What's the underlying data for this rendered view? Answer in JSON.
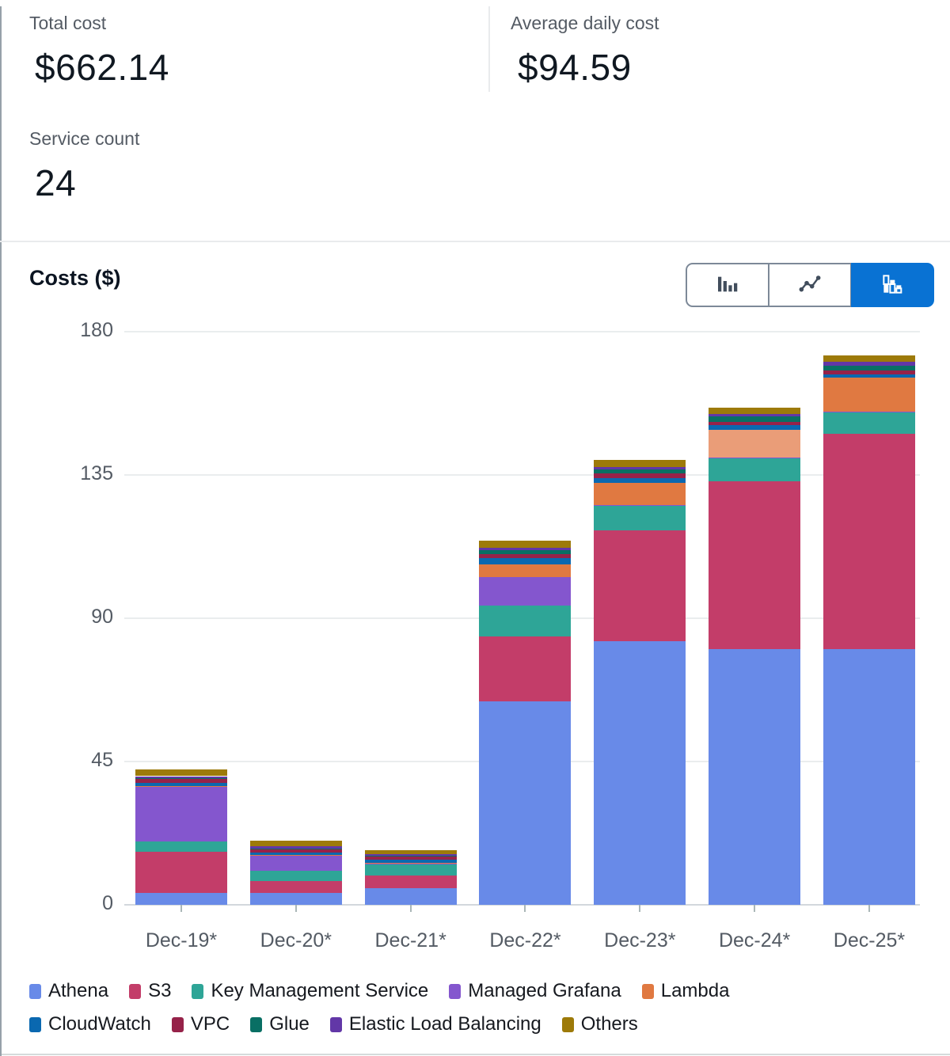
{
  "stats": [
    {
      "label": "Total cost",
      "value": "$662.14"
    },
    {
      "label": "Average daily cost",
      "value": "$94.59"
    },
    {
      "label": "Service count",
      "value": "24"
    }
  ],
  "chart": {
    "title": "Costs ($)",
    "toolbar": {
      "buttons": [
        {
          "icon": "bar-chart-icon",
          "selected": false
        },
        {
          "icon": "line-chart-icon",
          "selected": false
        },
        {
          "icon": "stacked-bar-chart-icon",
          "selected": true
        }
      ],
      "selected_color": "#0972d3"
    }
  },
  "chart_data": {
    "type": "bar",
    "stacked": true,
    "title": "Costs ($)",
    "ylabel": "Costs ($)",
    "xlabel": "",
    "ylim": [
      0,
      180
    ],
    "yticks": [
      0,
      45,
      90,
      135,
      180
    ],
    "grid": true,
    "legend_position": "bottom",
    "categories": [
      "Dec-19*",
      "Dec-20*",
      "Dec-21*",
      "Dec-22*",
      "Dec-23*",
      "Dec-24*",
      "Dec-25*"
    ],
    "series": [
      {
        "name": "Athena",
        "color": "#688ae8",
        "values": [
          3.7,
          3.7,
          5.2,
          64.0,
          82.8,
          80.4,
          80.4
        ]
      },
      {
        "name": "S3",
        "color": "#c33d69",
        "values": [
          13.0,
          3.8,
          4.1,
          20.4,
          34.9,
          52.6,
          67.5
        ]
      },
      {
        "name": "Key Management Service",
        "color": "#2ea597",
        "values": [
          3.1,
          3.2,
          3.3,
          9.7,
          7.8,
          7.4,
          6.9
        ]
      },
      {
        "name": "Managed Grafana",
        "color": "#8456ce",
        "values": [
          17.2,
          4.8,
          0.4,
          8.8,
          0.1,
          0.1,
          0.1
        ]
      },
      {
        "name": "Lambda",
        "color": "#e07941",
        "values": [
          0.3,
          0.15,
          0.1,
          4.0,
          6.9,
          8.7,
          10.6
        ]
      },
      {
        "name": "CloudWatch",
        "color": "#0a68b0",
        "values": [
          1.0,
          0.85,
          1.05,
          1.9,
          1.4,
          1.4,
          1.1
        ]
      },
      {
        "name": "VPC",
        "color": "#962249",
        "values": [
          1.3,
          1.0,
          1.2,
          1.25,
          1.5,
          1.1,
          1.25
        ]
      },
      {
        "name": "Glue",
        "color": "#096f64",
        "values": [
          0.2,
          0.2,
          0.15,
          1.4,
          1.4,
          1.65,
          1.4
        ]
      },
      {
        "name": "Elastic Load Balancing",
        "color": "#6237a7",
        "values": [
          0.6,
          0.6,
          0.3,
          0.65,
          0.65,
          0.8,
          1.3
        ]
      },
      {
        "name": "Others",
        "color": "#9d7a09",
        "values": [
          2.2,
          1.9,
          1.3,
          2.2,
          2.2,
          2.1,
          2.0
        ]
      }
    ],
    "color_overrides": [
      {
        "series": "Lambda",
        "category": "Dec-24*",
        "color": "#ea9d78"
      }
    ]
  }
}
